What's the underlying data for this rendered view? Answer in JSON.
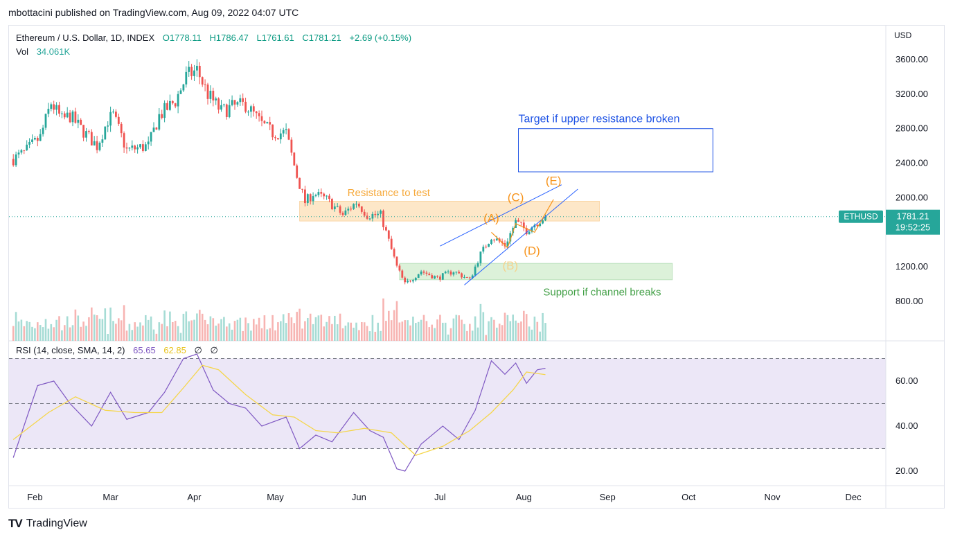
{
  "header": {
    "text": "mbottacini published on TradingView.com, Aug 09, 2022 04:07 UTC"
  },
  "footer": {
    "brand": "TradingView",
    "logo": "TV"
  },
  "legend": {
    "symbol": "Ethereum / U.S. Dollar, 1D, INDEX",
    "open": "O1778.11",
    "high": "H1786.47",
    "low": "L1761.61",
    "close": "C1781.21",
    "change": "+2.69 (+0.15%)",
    "vol_label": "Vol",
    "vol_value": "34.061K",
    "rsi_label": "RSI (14, close, SMA, 14, 2)",
    "rsi_value": "65.65",
    "rsi_sma": "62.85",
    "rsi_extra1": "∅",
    "rsi_extra2": "∅"
  },
  "colors": {
    "up": "#26a69a",
    "down": "#ef5350",
    "orange": "#f7931a",
    "resistance_fill": "#fde3bf",
    "support_fill": "#d7efd3",
    "target_blue": "#2962ff",
    "rsi_line": "#7e57c2",
    "rsi_sma": "#f5d64a",
    "rsi_band": "#ece7f7"
  },
  "chart_data": [
    {
      "type": "candlestick",
      "title": "Ethereum / U.S. Dollar, 1D, INDEX",
      "currency": "USD",
      "ylim": [
        500,
        3800
      ],
      "y_ticks": [
        "3600.00",
        "3200.00",
        "2800.00",
        "2400.00",
        "2000.00",
        "1200.00",
        "800.00"
      ],
      "x_labels": [
        "Feb",
        "Mar",
        "Apr",
        "May",
        "Jun",
        "Jul",
        "Aug",
        "Sep",
        "Oct",
        "Nov",
        "Dec"
      ],
      "last_price": {
        "label": "ETHUSD",
        "value": "1781.21",
        "countdown": "19:52:25"
      },
      "series_close": [
        {
          "date": "2022-01-24",
          "close": 2450
        },
        {
          "date": "2022-01-28",
          "close": 2520
        },
        {
          "date": "2022-02-03",
          "close": 2700
        },
        {
          "date": "2022-02-07",
          "close": 3100
        },
        {
          "date": "2022-02-11",
          "close": 2900
        },
        {
          "date": "2022-02-14",
          "close": 2950
        },
        {
          "date": "2022-02-18",
          "close": 2800
        },
        {
          "date": "2022-02-24",
          "close": 2600
        },
        {
          "date": "2022-02-28",
          "close": 2900
        },
        {
          "date": "2022-03-02",
          "close": 2950
        },
        {
          "date": "2022-03-07",
          "close": 2550
        },
        {
          "date": "2022-03-15",
          "close": 2600
        },
        {
          "date": "2022-03-19",
          "close": 2950
        },
        {
          "date": "2022-03-25",
          "close": 3120
        },
        {
          "date": "2022-03-29",
          "close": 3400
        },
        {
          "date": "2022-04-02",
          "close": 3480
        },
        {
          "date": "2022-04-06",
          "close": 3200
        },
        {
          "date": "2022-04-11",
          "close": 3000
        },
        {
          "date": "2022-04-15",
          "close": 3050
        },
        {
          "date": "2022-04-20",
          "close": 3080
        },
        {
          "date": "2022-04-26",
          "close": 2850
        },
        {
          "date": "2022-04-30",
          "close": 2750
        },
        {
          "date": "2022-05-05",
          "close": 2750
        },
        {
          "date": "2022-05-09",
          "close": 2250
        },
        {
          "date": "2022-05-12",
          "close": 1950
        },
        {
          "date": "2022-05-15",
          "close": 2050
        },
        {
          "date": "2022-05-20",
          "close": 1980
        },
        {
          "date": "2022-05-26",
          "close": 1800
        },
        {
          "date": "2022-05-31",
          "close": 1950
        },
        {
          "date": "2022-06-04",
          "close": 1800
        },
        {
          "date": "2022-06-09",
          "close": 1800
        },
        {
          "date": "2022-06-12",
          "close": 1500
        },
        {
          "date": "2022-06-15",
          "close": 1200
        },
        {
          "date": "2022-06-18",
          "close": 1000
        },
        {
          "date": "2022-06-24",
          "close": 1150
        },
        {
          "date": "2022-06-30",
          "close": 1070
        },
        {
          "date": "2022-07-06",
          "close": 1150
        },
        {
          "date": "2022-07-12",
          "close": 1050
        },
        {
          "date": "2022-07-16",
          "close": 1350
        },
        {
          "date": "2022-07-20",
          "close": 1550
        },
        {
          "date": "2022-07-25",
          "close": 1450
        },
        {
          "date": "2022-07-29",
          "close": 1720
        },
        {
          "date": "2022-08-02",
          "close": 1620
        },
        {
          "date": "2022-08-06",
          "close": 1720
        },
        {
          "date": "2022-08-09",
          "close": 1781
        }
      ],
      "annotations": [
        {
          "text": "Resistance to test",
          "kind": "zone",
          "from": "2022-05-10",
          "to": "2022-08-29",
          "y_low": 1730,
          "y_high": 1960,
          "color": "orange"
        },
        {
          "text": "Support if channel breaks",
          "kind": "zone",
          "from": "2022-06-16",
          "to": "2022-09-25",
          "y_low": 1050,
          "y_high": 1240,
          "color": "green"
        },
        {
          "text": "Target if upper resistance broken",
          "kind": "box",
          "from": "2022-07-30",
          "to": "2022-10-10",
          "y_low": 2300,
          "y_high": 2800,
          "color": "blue"
        },
        {
          "text": "(A)",
          "date": "2022-07-20",
          "price": 1720
        },
        {
          "text": "(B)",
          "date": "2022-07-27",
          "price": 1170
        },
        {
          "text": "(C)",
          "date": "2022-07-29",
          "price": 1960
        },
        {
          "text": "(D)",
          "date": "2022-08-04",
          "price": 1340
        },
        {
          "text": "(E)",
          "date": "2022-08-12",
          "price": 2150
        }
      ],
      "channel": {
        "upper": [
          {
            "date": "2022-07-01",
            "price": 1440
          },
          {
            "date": "2022-08-15",
            "price": 2150
          }
        ],
        "lower": [
          {
            "date": "2022-07-10",
            "price": 990
          },
          {
            "date": "2022-08-21",
            "price": 2100
          }
        ]
      }
    },
    {
      "type": "line",
      "title": "RSI (14, close, SMA, 14, 2)",
      "ylim": [
        15,
        75
      ],
      "y_ticks": [
        "60.00",
        "40.00",
        "20.00"
      ],
      "levels": [
        70,
        50,
        30
      ],
      "series": [
        {
          "name": "RSI",
          "values": [
            {
              "date": "2022-01-24",
              "value": 26
            },
            {
              "date": "2022-02-02",
              "value": 58
            },
            {
              "date": "2022-02-08",
              "value": 60
            },
            {
              "date": "2022-02-14",
              "value": 50
            },
            {
              "date": "2022-02-22",
              "value": 40
            },
            {
              "date": "2022-03-01",
              "value": 55
            },
            {
              "date": "2022-03-07",
              "value": 43
            },
            {
              "date": "2022-03-15",
              "value": 46
            },
            {
              "date": "2022-03-21",
              "value": 55
            },
            {
              "date": "2022-03-28",
              "value": 70
            },
            {
              "date": "2022-04-02",
              "value": 72
            },
            {
              "date": "2022-04-08",
              "value": 56
            },
            {
              "date": "2022-04-14",
              "value": 50
            },
            {
              "date": "2022-04-20",
              "value": 48
            },
            {
              "date": "2022-04-26",
              "value": 40
            },
            {
              "date": "2022-05-05",
              "value": 44
            },
            {
              "date": "2022-05-10",
              "value": 30
            },
            {
              "date": "2022-05-16",
              "value": 36
            },
            {
              "date": "2022-05-22",
              "value": 33
            },
            {
              "date": "2022-05-30",
              "value": 46
            },
            {
              "date": "2022-06-05",
              "value": 38
            },
            {
              "date": "2022-06-10",
              "value": 35
            },
            {
              "date": "2022-06-15",
              "value": 21
            },
            {
              "date": "2022-06-18",
              "value": 20
            },
            {
              "date": "2022-06-24",
              "value": 32
            },
            {
              "date": "2022-07-02",
              "value": 40
            },
            {
              "date": "2022-07-08",
              "value": 34
            },
            {
              "date": "2022-07-14",
              "value": 47
            },
            {
              "date": "2022-07-20",
              "value": 69
            },
            {
              "date": "2022-07-25",
              "value": 63
            },
            {
              "date": "2022-07-29",
              "value": 68
            },
            {
              "date": "2022-08-02",
              "value": 59
            },
            {
              "date": "2022-08-06",
              "value": 65
            },
            {
              "date": "2022-08-09",
              "value": 65.65
            }
          ]
        },
        {
          "name": "SMA",
          "values": [
            {
              "date": "2022-01-24",
              "value": 34
            },
            {
              "date": "2022-02-06",
              "value": 46
            },
            {
              "date": "2022-02-16",
              "value": 53
            },
            {
              "date": "2022-02-27",
              "value": 47
            },
            {
              "date": "2022-03-10",
              "value": 46
            },
            {
              "date": "2022-03-20",
              "value": 46
            },
            {
              "date": "2022-03-28",
              "value": 57
            },
            {
              "date": "2022-04-04",
              "value": 67
            },
            {
              "date": "2022-04-10",
              "value": 65
            },
            {
              "date": "2022-04-20",
              "value": 54
            },
            {
              "date": "2022-04-30",
              "value": 45
            },
            {
              "date": "2022-05-08",
              "value": 44
            },
            {
              "date": "2022-05-16",
              "value": 38
            },
            {
              "date": "2022-05-24",
              "value": 37
            },
            {
              "date": "2022-06-03",
              "value": 39
            },
            {
              "date": "2022-06-13",
              "value": 37
            },
            {
              "date": "2022-06-22",
              "value": 27
            },
            {
              "date": "2022-07-02",
              "value": 31
            },
            {
              "date": "2022-07-12",
              "value": 38
            },
            {
              "date": "2022-07-20",
              "value": 46
            },
            {
              "date": "2022-07-28",
              "value": 56
            },
            {
              "date": "2022-08-02",
              "value": 64
            },
            {
              "date": "2022-08-09",
              "value": 62.85
            }
          ]
        }
      ]
    }
  ]
}
